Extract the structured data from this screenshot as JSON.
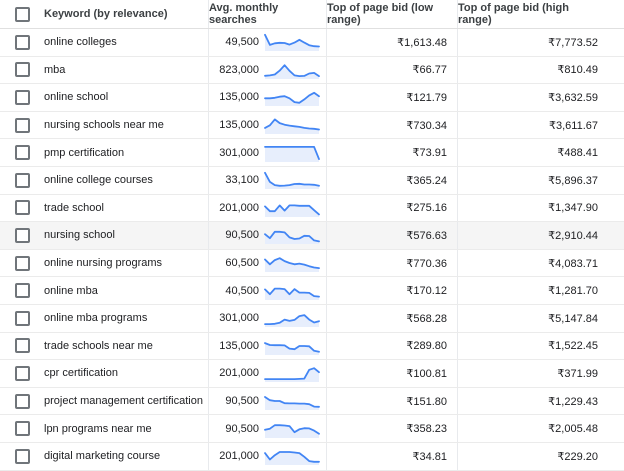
{
  "colors": {
    "accent_blue": "#4285f4",
    "spark_fill": "#e7eefc",
    "row_border": "#ebebeb",
    "column_divider": "#e8eaed",
    "highlight_row_bg": "#f5f5f5",
    "header_text": "#3c4043",
    "body_text": "#202124"
  },
  "table": {
    "columns": [
      "Keyword (by relevance)",
      "Avg. monthly searches",
      "Top of page bid (low range)",
      "Top of page bid (high range)"
    ],
    "rows": [
      {
        "keyword": "online colleges",
        "searches": "49,500",
        "low": "₹1,613.48",
        "high": "₹7,773.52",
        "highlight": false,
        "spark": [
          95,
          32,
          42,
          45,
          44,
          34,
          46,
          64,
          46,
          30,
          24,
          22
        ]
      },
      {
        "keyword": "mba",
        "searches": "823,000",
        "low": "₹66.77",
        "high": "₹810.49",
        "highlight": false,
        "spark": [
          14,
          16,
          22,
          46,
          80,
          45,
          16,
          12,
          13,
          28,
          32,
          12
        ]
      },
      {
        "keyword": "online school",
        "searches": "135,000",
        "low": "₹121.79",
        "high": "₹3,632.59",
        "highlight": false,
        "spark": [
          42,
          42,
          45,
          52,
          55,
          42,
          18,
          14,
          35,
          60,
          76,
          55
        ]
      },
      {
        "keyword": "nursing schools near me",
        "searches": "135,000",
        "low": "₹730.34",
        "high": "₹3,611.67",
        "highlight": false,
        "spark": [
          32,
          48,
          85,
          62,
          52,
          46,
          42,
          38,
          32,
          28,
          26,
          22
        ]
      },
      {
        "keyword": "pmp certification",
        "searches": "301,000",
        "low": "₹73.91",
        "high": "₹488.41",
        "highlight": false,
        "spark": [
          88,
          88,
          88,
          88,
          88,
          88,
          88,
          88,
          88,
          88,
          88,
          12
        ]
      },
      {
        "keyword": "online college courses",
        "searches": "33,100",
        "low": "₹365.24",
        "high": "₹5,896.37",
        "highlight": false,
        "spark": [
          95,
          38,
          18,
          14,
          15,
          18,
          25,
          26,
          22,
          22,
          20,
          14
        ]
      },
      {
        "keyword": "trade school",
        "searches": "201,000",
        "low": "₹275.16",
        "high": "₹1,347.90",
        "highlight": false,
        "spark": [
          60,
          30,
          30,
          66,
          34,
          66,
          66,
          64,
          64,
          64,
          36,
          10
        ]
      },
      {
        "keyword": "nursing school",
        "searches": "90,500",
        "low": "₹576.63",
        "high": "₹2,910.44",
        "highlight": true,
        "spark": [
          55,
          30,
          70,
          70,
          66,
          35,
          25,
          28,
          45,
          44,
          16,
          10
        ]
      },
      {
        "keyword": "online nursing programs",
        "searches": "60,500",
        "low": "₹770.36",
        "high": "₹4,083.71",
        "highlight": false,
        "spark": [
          72,
          42,
          68,
          80,
          62,
          50,
          42,
          46,
          40,
          30,
          22,
          18
        ]
      },
      {
        "keyword": "online mba",
        "searches": "40,500",
        "low": "₹170.12",
        "high": "₹1,281.70",
        "highlight": false,
        "spark": [
          60,
          30,
          65,
          65,
          62,
          30,
          62,
          40,
          40,
          38,
          18,
          15
        ]
      },
      {
        "keyword": "online mba programs",
        "searches": "301,000",
        "low": "₹568.28",
        "high": "₹5,147.84",
        "highlight": false,
        "spark": [
          12,
          12,
          14,
          20,
          40,
          32,
          38,
          62,
          68,
          40,
          22,
          30
        ]
      },
      {
        "keyword": "trade schools near me",
        "searches": "135,000",
        "low": "₹289.80",
        "high": "₹1,522.45",
        "highlight": false,
        "spark": [
          68,
          56,
          55,
          55,
          54,
          34,
          30,
          50,
          50,
          48,
          20,
          14
        ]
      },
      {
        "keyword": "cpr certification",
        "searches": "201,000",
        "low": "₹100.81",
        "high": "₹371.99",
        "highlight": false,
        "spark": [
          12,
          12,
          12,
          12,
          12,
          12,
          12,
          13,
          15,
          70,
          80,
          55
        ]
      },
      {
        "keyword": "project management certification",
        "searches": "90,500",
        "low": "₹151.80",
        "high": "₹1,229.43",
        "highlight": false,
        "spark": [
          75,
          55,
          50,
          50,
          36,
          35,
          35,
          34,
          34,
          30,
          15,
          14
        ]
      },
      {
        "keyword": "lpn programs near me",
        "searches": "90,500",
        "low": "₹358.23",
        "high": "₹2,005.48",
        "highlight": false,
        "spark": [
          45,
          52,
          74,
          74,
          72,
          68,
          30,
          48,
          55,
          54,
          40,
          20
        ]
      },
      {
        "keyword": "digital marketing course",
        "searches": "201,000",
        "low": "₹34.81",
        "high": "₹229.20",
        "highlight": false,
        "spark": [
          68,
          28,
          55,
          75,
          75,
          75,
          72,
          68,
          45,
          18,
          14,
          14
        ]
      }
    ]
  },
  "chart_data": {
    "type": "table",
    "title": "Keyword ideas with average monthly searches and top-of-page bids",
    "columns": [
      "Keyword (by relevance)",
      "Avg. monthly searches",
      "Top of page bid (low range)",
      "Top of page bid (high range)"
    ],
    "rows": [
      [
        "online colleges",
        "49,500",
        "₹1,613.48",
        "₹7,773.52"
      ],
      [
        "mba",
        "823,000",
        "₹66.77",
        "₹810.49"
      ],
      [
        "online school",
        "135,000",
        "₹121.79",
        "₹3,632.59"
      ],
      [
        "nursing schools near me",
        "135,000",
        "₹730.34",
        "₹3,611.67"
      ],
      [
        "pmp certification",
        "301,000",
        "₹73.91",
        "₹488.41"
      ],
      [
        "online college courses",
        "33,100",
        "₹365.24",
        "₹5,896.37"
      ],
      [
        "trade school",
        "201,000",
        "₹275.16",
        "₹1,347.90"
      ],
      [
        "nursing school",
        "90,500",
        "₹576.63",
        "₹2,910.44"
      ],
      [
        "online nursing programs",
        "60,500",
        "₹770.36",
        "₹4,083.71"
      ],
      [
        "online mba",
        "40,500",
        "₹170.12",
        "₹1,281.70"
      ],
      [
        "online mba programs",
        "301,000",
        "₹568.28",
        "₹5,147.84"
      ],
      [
        "trade schools near me",
        "135,000",
        "₹289.80",
        "₹1,522.45"
      ],
      [
        "cpr certification",
        "201,000",
        "₹100.81",
        "₹371.99"
      ],
      [
        "project management certification",
        "90,500",
        "₹151.80",
        "₹1,229.43"
      ],
      [
        "lpn programs near me",
        "90,500",
        "₹358.23",
        "₹2,005.48"
      ],
      [
        "digital marketing course",
        "201,000",
        "₹34.81",
        "₹229.20"
      ]
    ]
  }
}
